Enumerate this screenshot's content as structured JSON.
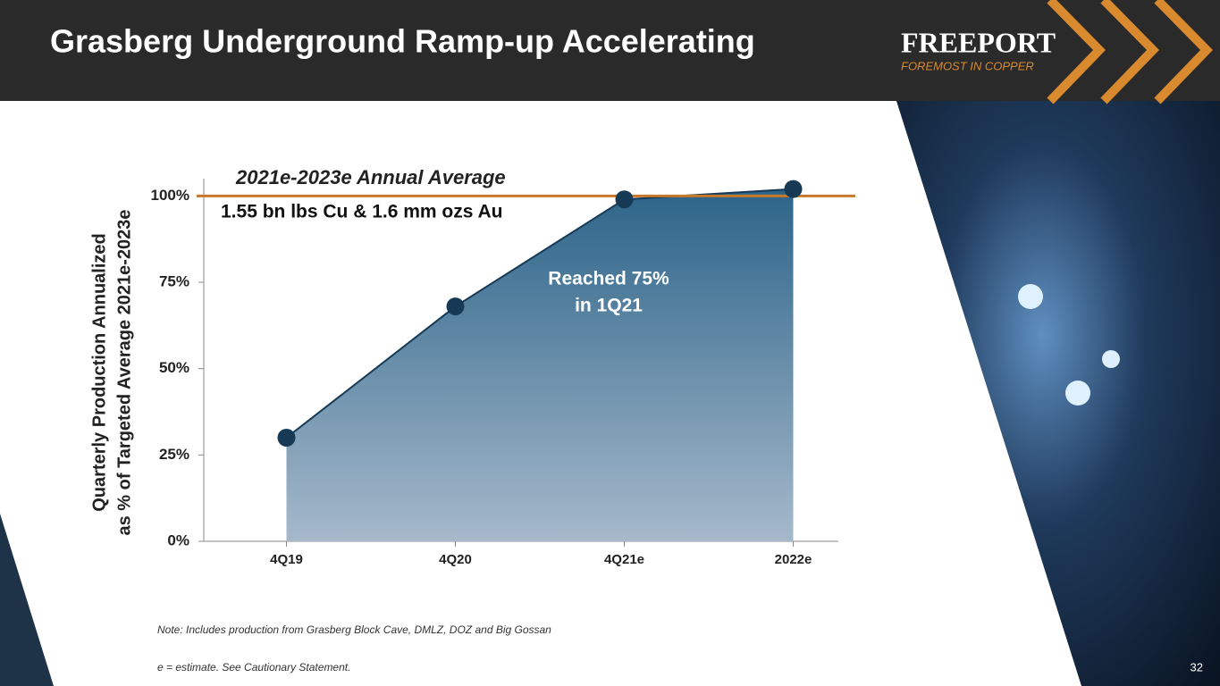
{
  "header": {
    "title": "Grasberg Underground Ramp-up Accelerating",
    "logo": "FREEPORT",
    "tagline": "FOREMOST IN COPPER"
  },
  "chart_data": {
    "type": "area",
    "y_label": [
      "Quarterly Production Annualized",
      "as % of Targeted Average 2021e-2023e"
    ],
    "categories": [
      "4Q19",
      "4Q20",
      "4Q21e",
      "2022e"
    ],
    "values": [
      30,
      68,
      99,
      102
    ],
    "color": "#163a55",
    "ylim": [
      0,
      105
    ],
    "yticks": [
      {
        "value": 0,
        "label": "0%"
      },
      {
        "value": 25,
        "label": "25%"
      },
      {
        "value": 50,
        "label": "50%"
      },
      {
        "value": 75,
        "label": "75%"
      },
      {
        "value": 100,
        "label": "100%"
      }
    ],
    "reference_line": {
      "value": 100,
      "color": "#c8782a",
      "title": "2021e-2023e Annual Average",
      "subtitle": "1.55 bn lbs Cu & 1.6 mm ozs Au"
    },
    "annotation": [
      "Reached 75%",
      "in 1Q21"
    ]
  },
  "notes": [
    "Note: Includes production from Grasberg Block Cave, DMLZ, DOZ and Big Gossan",
    "e = estimate. See Cautionary Statement."
  ],
  "page_number": "32"
}
